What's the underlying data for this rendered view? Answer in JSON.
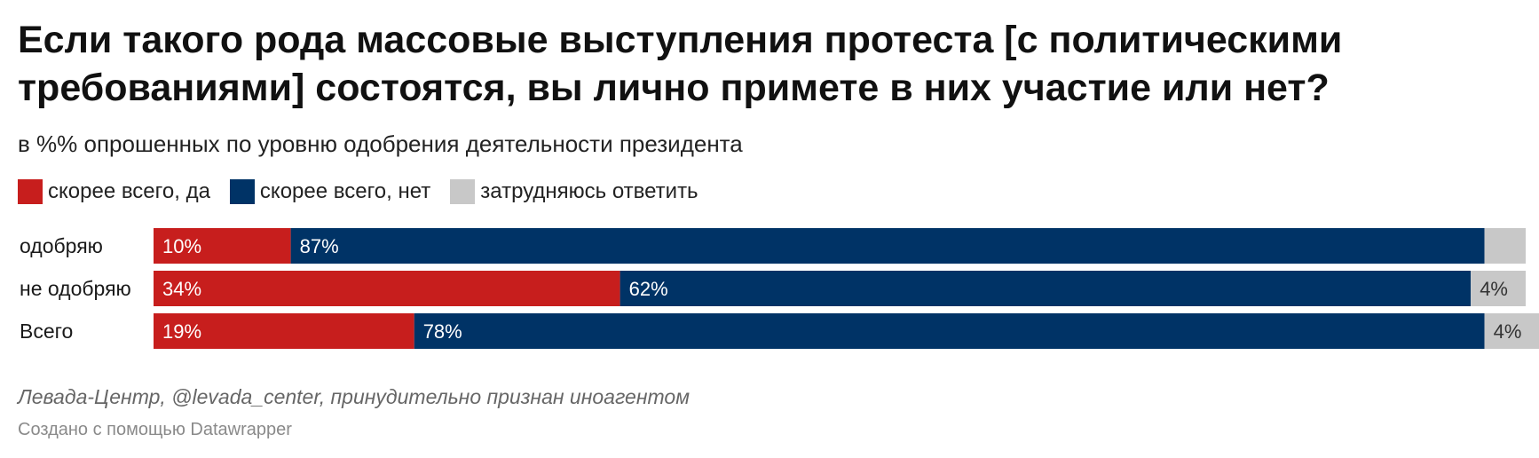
{
  "chart_data": {
    "type": "bar",
    "orientation": "horizontal",
    "stacked": true,
    "title": "Если такого рода массовые выступления протеста [с политическими требованиями] состоятся, вы лично примете в них участие или нет?",
    "subtitle": "в %% опрошенных по уровню одобрения деятельности президента",
    "categories": [
      "одобряю",
      "не одобряю",
      "Всего"
    ],
    "series": [
      {
        "name": "скорее всего, да",
        "color": "#c71e1d",
        "values": [
          10,
          34,
          19
        ],
        "labels": [
          "10%",
          "34%",
          "19%"
        ]
      },
      {
        "name": "скорее всего, нет",
        "color": "#003366",
        "values": [
          87,
          62,
          78
        ],
        "labels": [
          "87%",
          "62%",
          "78%"
        ]
      },
      {
        "name": "затрудняюсь ответить",
        "color": "#c8c8c8",
        "values": [
          3,
          4,
          4
        ],
        "labels": [
          "",
          "4%",
          "4%"
        ]
      }
    ],
    "xlim": [
      0,
      100
    ],
    "grid": false,
    "legend": "top-left"
  },
  "footer": {
    "source": "Левада-Центр, @levada_center, принудительно признан иноагентом",
    "credit": "Создано с помощью Datawrapper"
  }
}
